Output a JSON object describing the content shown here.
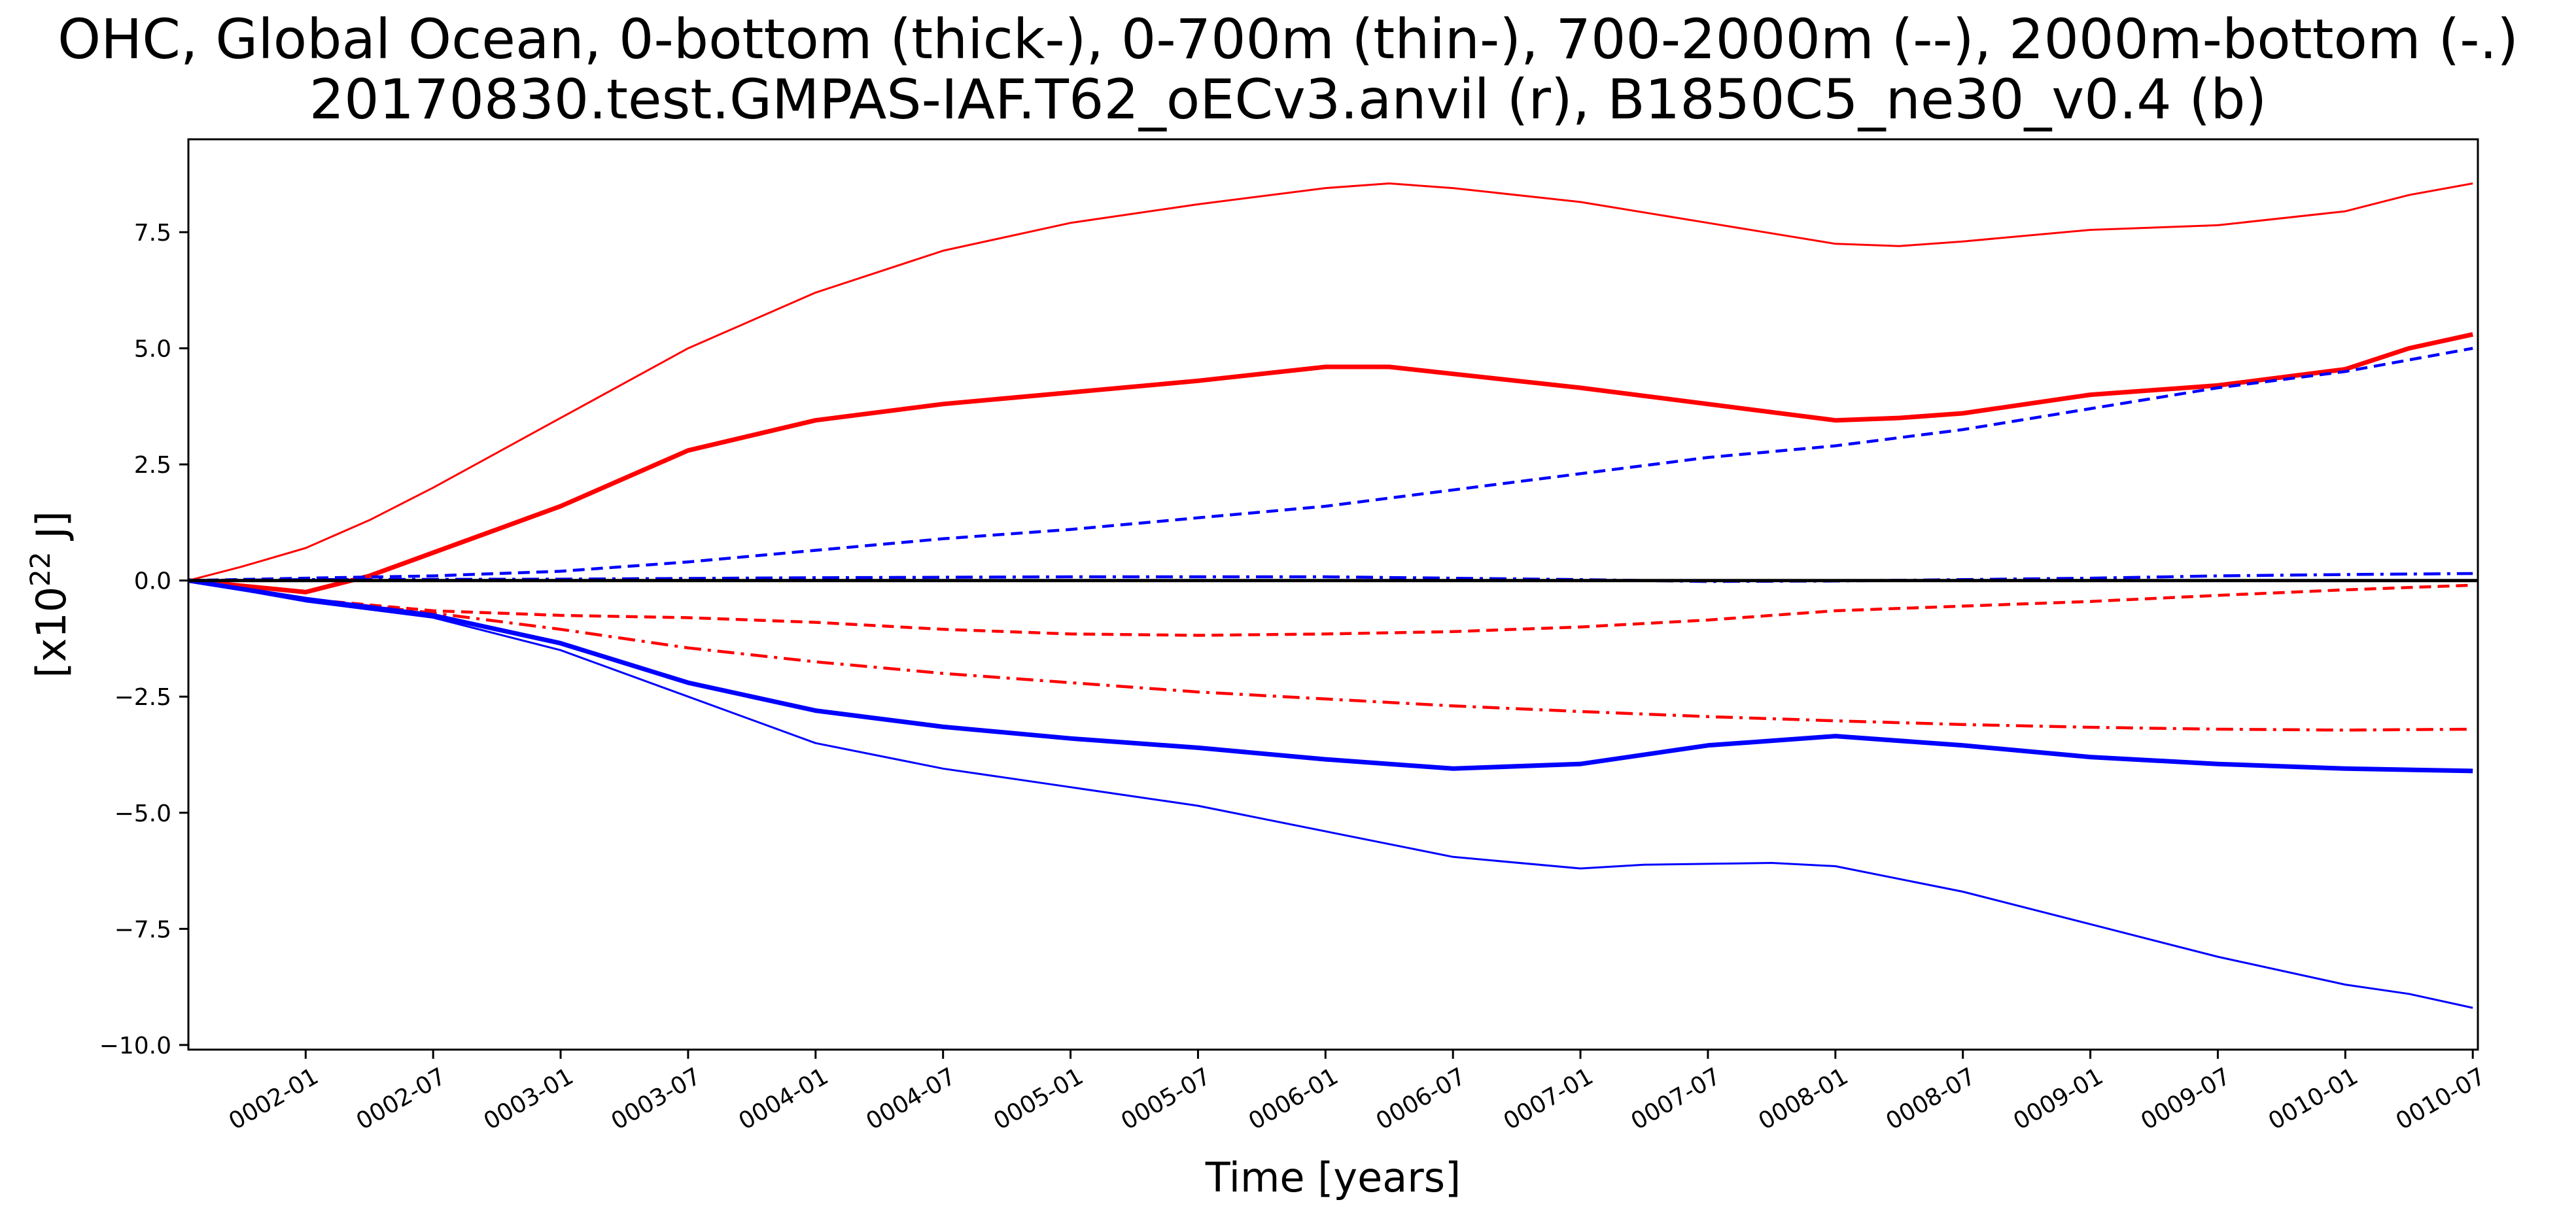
{
  "chart_data": {
    "type": "line",
    "title": "OHC, Global Ocean, 0-bottom (thick-), 0-700m (thin-), 700-2000m (--), 2000m-bottom (-.)",
    "subtitle": "20170830.test.GMPAS-IAF.T62_oECv3.anvil (r), B1850C5_ne30_v0.4 (b)",
    "xlabel": "Time [years]",
    "ylabel_base": "[x10",
    "ylabel_exp": "22",
    "ylabel_unit": " J]",
    "x_tick_labels": [
      "0002-01",
      "0002-07",
      "0003-01",
      "0003-07",
      "0004-01",
      "0004-07",
      "0005-01",
      "0005-07",
      "0006-01",
      "0006-07",
      "0007-01",
      "0007-07",
      "0008-01",
      "0008-07",
      "0009-01",
      "0009-07",
      "0010-01",
      "0010-07"
    ],
    "x_tick_values": [
      2.0,
      2.5,
      3.0,
      3.5,
      4.0,
      4.5,
      5.0,
      5.5,
      6.0,
      6.5,
      7.0,
      7.5,
      8.0,
      8.5,
      9.0,
      9.5,
      10.0,
      10.5
    ],
    "xlim": [
      1.54,
      10.52
    ],
    "y_tick_labels": [
      "−10.0",
      "−7.5",
      "−5.0",
      "−2.5",
      "0.0",
      "2.5",
      "5.0",
      "7.5"
    ],
    "y_tick_values": [
      -10.0,
      -7.5,
      -5.0,
      -2.5,
      0.0,
      2.5,
      5.0,
      7.5
    ],
    "ylim": [
      -10.1,
      9.5
    ],
    "grid": false,
    "series": [
      {
        "color": "#ff0000",
        "width": 7,
        "dash": "solid",
        "x": [
          1.54,
          2.0,
          2.25,
          2.5,
          3.0,
          3.5,
          4.0,
          4.5,
          5.0,
          5.5,
          6.0,
          6.25,
          6.5,
          7.0,
          7.5,
          8.0,
          8.25,
          8.5,
          9.0,
          9.5,
          10.0,
          10.25,
          10.5
        ],
        "y": [
          0,
          -0.25,
          0.1,
          0.6,
          1.6,
          2.8,
          3.45,
          3.8,
          4.05,
          4.3,
          4.6,
          4.6,
          4.45,
          4.15,
          3.8,
          3.45,
          3.5,
          3.6,
          4.0,
          4.2,
          4.55,
          5.0,
          5.3
        ]
      },
      {
        "color": "#ff0000",
        "width": 3,
        "dash": "solid",
        "x": [
          1.54,
          1.75,
          2.0,
          2.25,
          2.5,
          3.0,
          3.5,
          4.0,
          4.5,
          5.0,
          5.5,
          6.0,
          6.25,
          6.5,
          7.0,
          7.5,
          8.0,
          8.25,
          8.5,
          9.0,
          9.5,
          10.0,
          10.25,
          10.5
        ],
        "y": [
          0,
          0.3,
          0.7,
          1.3,
          2.0,
          3.5,
          5.0,
          6.2,
          7.1,
          7.7,
          8.1,
          8.45,
          8.55,
          8.45,
          8.15,
          7.7,
          7.25,
          7.2,
          7.3,
          7.55,
          7.65,
          7.95,
          8.3,
          8.55
        ]
      },
      {
        "color": "#ff0000",
        "width": 4.5,
        "dash": "18 10",
        "x": [
          1.54,
          2.0,
          2.5,
          3.0,
          3.5,
          4.0,
          4.5,
          5.0,
          5.5,
          6.0,
          6.5,
          7.0,
          7.5,
          8.0,
          8.5,
          9.0,
          9.5,
          10.0,
          10.5
        ],
        "y": [
          0,
          -0.4,
          -0.65,
          -0.75,
          -0.8,
          -0.9,
          -1.05,
          -1.15,
          -1.18,
          -1.15,
          -1.1,
          -1.0,
          -0.85,
          -0.65,
          -0.55,
          -0.45,
          -0.32,
          -0.2,
          -0.1
        ]
      },
      {
        "color": "#ff0000",
        "width": 4.5,
        "dash": "26 10 5 10",
        "x": [
          1.54,
          2.0,
          2.5,
          3.0,
          3.5,
          4.0,
          4.5,
          5.0,
          5.5,
          6.0,
          6.5,
          7.0,
          7.5,
          8.0,
          8.5,
          9.0,
          9.5,
          10.0,
          10.5
        ],
        "y": [
          0,
          -0.4,
          -0.7,
          -1.05,
          -1.45,
          -1.75,
          -2.0,
          -2.2,
          -2.4,
          -2.55,
          -2.7,
          -2.82,
          -2.93,
          -3.02,
          -3.1,
          -3.16,
          -3.2,
          -3.22,
          -3.2
        ]
      },
      {
        "color": "#0000ff",
        "width": 7,
        "dash": "solid",
        "x": [
          1.54,
          2.0,
          2.5,
          3.0,
          3.5,
          4.0,
          4.5,
          5.0,
          5.5,
          6.0,
          6.5,
          7.0,
          7.5,
          8.0,
          8.5,
          9.0,
          9.5,
          10.0,
          10.5
        ],
        "y": [
          0,
          -0.4,
          -0.75,
          -1.35,
          -2.2,
          -2.8,
          -3.15,
          -3.4,
          -3.6,
          -3.85,
          -4.05,
          -3.95,
          -3.55,
          -3.35,
          -3.55,
          -3.8,
          -3.95,
          -4.05,
          -4.1
        ]
      },
      {
        "color": "#0000ff",
        "width": 3,
        "dash": "solid",
        "x": [
          1.54,
          2.0,
          2.5,
          3.0,
          3.5,
          4.0,
          4.5,
          5.0,
          5.5,
          6.0,
          6.5,
          7.0,
          7.25,
          7.5,
          7.75,
          8.0,
          8.5,
          9.0,
          9.5,
          10.0,
          10.25,
          10.5
        ],
        "y": [
          0,
          -0.45,
          -0.8,
          -1.5,
          -2.5,
          -3.5,
          -4.05,
          -4.45,
          -4.85,
          -5.4,
          -5.95,
          -6.2,
          -6.12,
          -6.1,
          -6.08,
          -6.15,
          -6.7,
          -7.4,
          -8.1,
          -8.7,
          -8.9,
          -9.2
        ]
      },
      {
        "color": "#0000ff",
        "width": 4.5,
        "dash": "18 10",
        "x": [
          1.54,
          2.0,
          2.5,
          3.0,
          3.5,
          4.0,
          4.5,
          5.0,
          5.5,
          6.0,
          6.5,
          7.0,
          7.5,
          8.0,
          8.5,
          9.0,
          9.5,
          10.0,
          10.5
        ],
        "y": [
          0,
          0.05,
          0.1,
          0.2,
          0.4,
          0.65,
          0.9,
          1.1,
          1.35,
          1.6,
          1.95,
          2.3,
          2.65,
          2.9,
          3.25,
          3.7,
          4.15,
          4.5,
          5.0
        ]
      },
      {
        "color": "#0000ff",
        "width": 4.5,
        "dash": "26 10 5 10",
        "x": [
          1.54,
          2.0,
          3.0,
          4.0,
          5.0,
          6.0,
          7.0,
          7.5,
          8.0,
          8.5,
          9.0,
          9.5,
          10.0,
          10.5
        ],
        "y": [
          0,
          0.02,
          0.03,
          0.06,
          0.08,
          0.08,
          0.02,
          -0.02,
          -0.01,
          0.02,
          0.05,
          0.1,
          0.13,
          0.15
        ]
      },
      {
        "color": "#000000",
        "width": 5,
        "dash": "solid",
        "x": [
          1.54,
          10.52
        ],
        "y": [
          0,
          0
        ]
      }
    ]
  }
}
